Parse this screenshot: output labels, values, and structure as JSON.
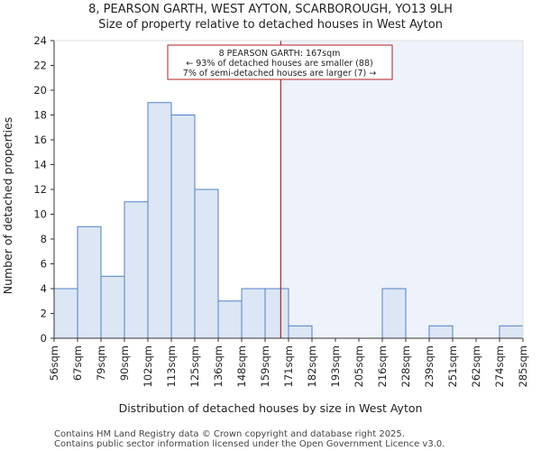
{
  "title_line1": "8, PEARSON GARTH, WEST AYTON, SCARBOROUGH, YO13 9LH",
  "title_line2": "Size of property relative to detached houses in West Ayton",
  "footer_line1": "Contains HM Land Registry data © Crown copyright and database right 2025.",
  "footer_line2": "Contains public sector information licensed under the Open Government Licence v3.0.",
  "chart_data": {
    "type": "bar",
    "title": "Size of property relative to detached houses in West Ayton",
    "xlabel": "Distribution of detached houses by size in West Ayton",
    "ylabel": "Number of detached properties",
    "x_tick_labels": [
      "56sqm",
      "67sqm",
      "79sqm",
      "90sqm",
      "102sqm",
      "113sqm",
      "125sqm",
      "136sqm",
      "148sqm",
      "159sqm",
      "171sqm",
      "182sqm",
      "193sqm",
      "205sqm",
      "216sqm",
      "228sqm",
      "239sqm",
      "251sqm",
      "262sqm",
      "274sqm",
      "285sqm"
    ],
    "values": [
      4,
      9,
      5,
      11,
      19,
      18,
      12,
      3,
      4,
      4,
      1,
      0,
      0,
      0,
      4,
      0,
      1,
      0,
      0,
      1
    ],
    "ylim": [
      0,
      24
    ],
    "yticks": [
      0,
      2,
      4,
      6,
      8,
      10,
      12,
      14,
      16,
      18,
      20,
      22,
      24
    ],
    "property_size": 167,
    "annotation": {
      "line1": "8 PEARSON GARTH: 167sqm",
      "line2": "← 93% of detached houses are smaller (88)",
      "line3": "7% of semi-detached houses are larger (7) →"
    },
    "colors": {
      "bar_fill": "#dce6f5",
      "bar_stroke": "#4f81c7",
      "marker_line": "#b22222",
      "shade": "#eef2fb",
      "annotation_border": "#b22222"
    }
  }
}
